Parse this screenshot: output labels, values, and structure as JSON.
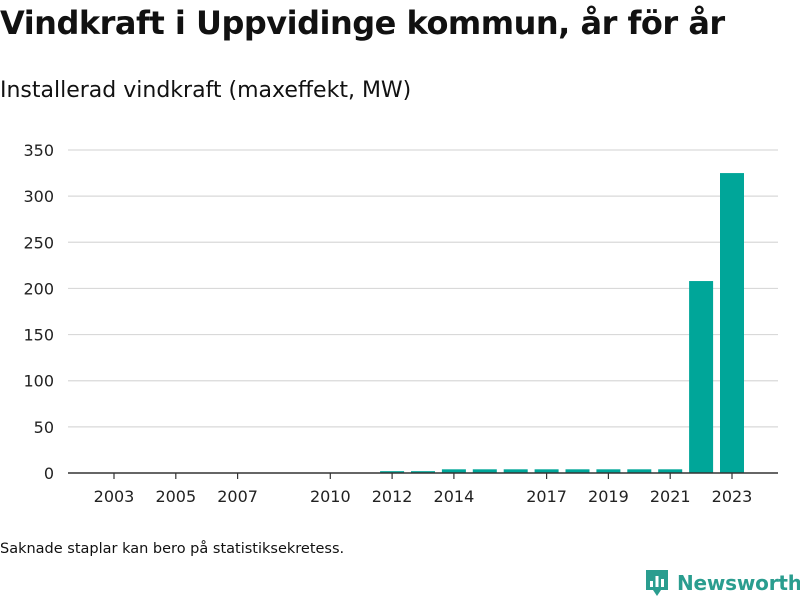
{
  "title": "Vindkraft i Uppvidinge kommun, år för år",
  "subtitle": "Installerad vindkraft (maxeffekt, MW)",
  "note": "Saknade staplar kan bero på statistiksekretess.",
  "brand": {
    "name": "Newsworthy",
    "icon": "newsworthy-logo-icon"
  },
  "colors": {
    "bar": "#00a699",
    "grid": "#d9d9d9",
    "axis": "#333333",
    "brand": "#2a9d8f"
  },
  "chart_data": {
    "type": "bar",
    "categories": [
      "2003",
      "2004",
      "2005",
      "2006",
      "2007",
      "2008",
      "2009",
      "2010",
      "2011",
      "2012",
      "2013",
      "2014",
      "2015",
      "2016",
      "2017",
      "2018",
      "2019",
      "2020",
      "2021",
      "2022",
      "2023"
    ],
    "tick_labels": [
      "2003",
      "2005",
      "2007",
      "2010",
      "2012",
      "2014",
      "2017",
      "2019",
      "2021",
      "2023"
    ],
    "values": [
      0,
      0,
      0,
      0,
      0,
      0,
      0,
      0,
      0,
      2,
      2,
      4,
      4,
      4,
      4,
      4,
      4,
      4,
      4,
      208,
      325
    ],
    "yticks": [
      0,
      50,
      100,
      150,
      200,
      250,
      300,
      350
    ],
    "ylim": [
      0,
      350
    ],
    "title": "",
    "xlabel": "",
    "ylabel": "",
    "grid": true
  }
}
